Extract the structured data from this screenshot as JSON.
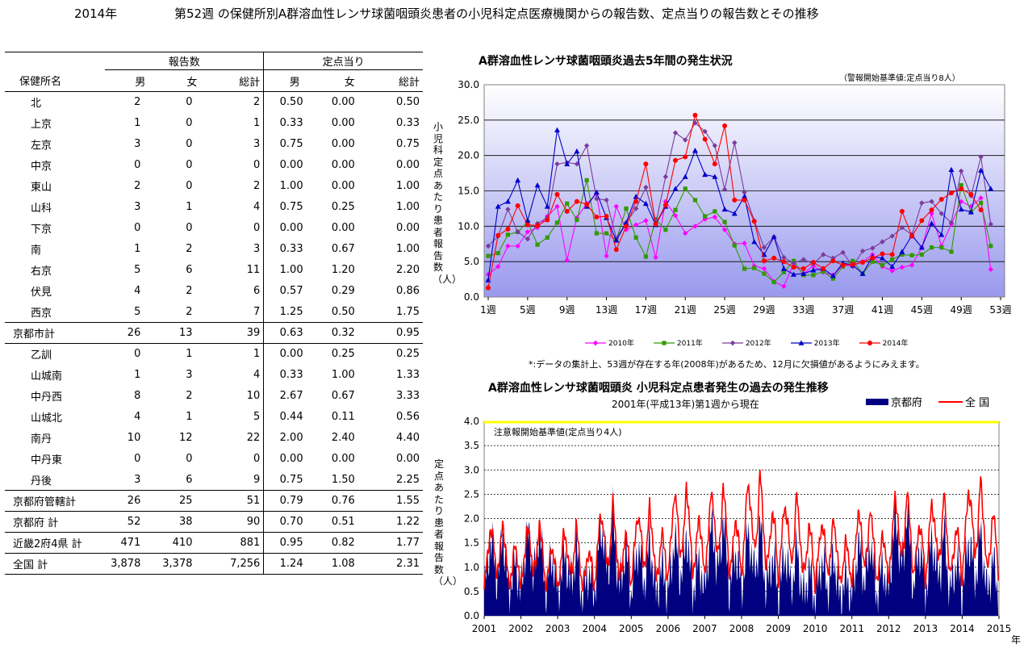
{
  "title": {
    "year": "2014年",
    "text": "第52週 の保健所別A群溶血性レンサ球菌咽頭炎患者の小児科定点医療機関からの報告数、定点当りの報告数とその推移"
  },
  "table": {
    "group_headers": [
      "報告数",
      "定点当り"
    ],
    "col_headers": [
      "保健所名",
      "男",
      "女",
      "総計",
      "男",
      "女",
      "総計"
    ],
    "rows": [
      {
        "name": "北",
        "m": "2",
        "f": "0",
        "t": "2",
        "pm": "0.50",
        "pf": "0.00",
        "pt": "0.50"
      },
      {
        "name": "上京",
        "m": "1",
        "f": "0",
        "t": "1",
        "pm": "0.33",
        "pf": "0.00",
        "pt": "0.33"
      },
      {
        "name": "左京",
        "m": "3",
        "f": "0",
        "t": "3",
        "pm": "0.75",
        "pf": "0.00",
        "pt": "0.75"
      },
      {
        "name": "中京",
        "m": "0",
        "f": "0",
        "t": "0",
        "pm": "0.00",
        "pf": "0.00",
        "pt": "0.00"
      },
      {
        "name": "東山",
        "m": "2",
        "f": "0",
        "t": "2",
        "pm": "1.00",
        "pf": "0.00",
        "pt": "1.00"
      },
      {
        "name": "山科",
        "m": "3",
        "f": "1",
        "t": "4",
        "pm": "0.75",
        "pf": "0.25",
        "pt": "1.00"
      },
      {
        "name": "下京",
        "m": "0",
        "f": "0",
        "t": "0",
        "pm": "0.00",
        "pf": "0.00",
        "pt": "0.00"
      },
      {
        "name": "南",
        "m": "1",
        "f": "2",
        "t": "3",
        "pm": "0.33",
        "pf": "0.67",
        "pt": "1.00"
      },
      {
        "name": "右京",
        "m": "5",
        "f": "6",
        "t": "11",
        "pm": "1.00",
        "pf": "1.20",
        "pt": "2.20"
      },
      {
        "name": "伏見",
        "m": "4",
        "f": "2",
        "t": "6",
        "pm": "0.57",
        "pf": "0.29",
        "pt": "0.86"
      },
      {
        "name": "西京",
        "m": "5",
        "f": "2",
        "t": "7",
        "pm": "1.25",
        "pf": "0.50",
        "pt": "1.75"
      },
      {
        "name": "京都市計",
        "m": "26",
        "f": "13",
        "t": "39",
        "pm": "0.63",
        "pf": "0.32",
        "pt": "0.95",
        "group": true
      },
      {
        "name": "乙訓",
        "m": "0",
        "f": "1",
        "t": "1",
        "pm": "0.00",
        "pf": "0.25",
        "pt": "0.25"
      },
      {
        "name": "山城南",
        "m": "1",
        "f": "3",
        "t": "4",
        "pm": "0.33",
        "pf": "1.00",
        "pt": "1.33"
      },
      {
        "name": "中丹西",
        "m": "8",
        "f": "2",
        "t": "10",
        "pm": "2.67",
        "pf": "0.67",
        "pt": "3.33"
      },
      {
        "name": "山城北",
        "m": "4",
        "f": "1",
        "t": "5",
        "pm": "0.44",
        "pf": "0.11",
        "pt": "0.56"
      },
      {
        "name": "南丹",
        "m": "10",
        "f": "12",
        "t": "22",
        "pm": "2.00",
        "pf": "2.40",
        "pt": "4.40"
      },
      {
        "name": "中丹東",
        "m": "0",
        "f": "0",
        "t": "0",
        "pm": "0.00",
        "pf": "0.00",
        "pt": "0.00"
      },
      {
        "name": "丹後",
        "m": "3",
        "f": "6",
        "t": "9",
        "pm": "0.75",
        "pf": "1.50",
        "pt": "2.25"
      },
      {
        "name": "京都府管轄計",
        "m": "26",
        "f": "25",
        "t": "51",
        "pm": "0.79",
        "pf": "0.76",
        "pt": "1.55",
        "group": true
      },
      {
        "name": "京都府 計",
        "m": "52",
        "f": "38",
        "t": "90",
        "pm": "0.70",
        "pf": "0.51",
        "pt": "1.22",
        "group": true
      },
      {
        "name": "近畿2府4県 計",
        "m": "471",
        "f": "410",
        "t": "881",
        "pm": "0.95",
        "pf": "0.82",
        "pt": "1.77",
        "group": true
      },
      {
        "name": "全国 計",
        "m": "3,878",
        "f": "3,378",
        "t": "7,256",
        "pm": "1.24",
        "pf": "1.08",
        "pt": "2.31",
        "group": true
      }
    ]
  },
  "chart_data": [
    {
      "type": "line",
      "title": "A群溶血性レンサ球菌咽頭炎過去5年間の発生状況",
      "note": "（警報開始基準値:定点当り8人）",
      "ylabel": "小児科定点あたり患者報告数（人）",
      "footnote": "*:データの集計上、53週が存在する年(2008年)があるため、12月に欠損値があるようにみえます。",
      "ylim": [
        0,
        30
      ],
      "yticks": [
        "0.0",
        "5.0",
        "10.0",
        "15.0",
        "20.0",
        "25.0",
        "30.0"
      ],
      "xticks": [
        "1週",
        "5週",
        "9週",
        "13週",
        "17週",
        "21週",
        "25週",
        "29週",
        "33週",
        "37週",
        "41週",
        "45週",
        "49週",
        "53週"
      ],
      "x_range": [
        1,
        53
      ],
      "series": [
        {
          "name": "2010年",
          "color": "#ff00ff",
          "marker": "diamond",
          "values": [
            3.2,
            4.3,
            7.2,
            7.2,
            9.2,
            9.8,
            11.4,
            12.8,
            5.2,
            11.2,
            13.2,
            14.6,
            5.8,
            12.8,
            9.5,
            10.2,
            10.8,
            5.6,
            13.5,
            11.5,
            9.0,
            10.0,
            11.0,
            11.3,
            9.5,
            7.5,
            7.6,
            4.4,
            4.0,
            2.2,
            1.5,
            4.7,
            3.3,
            4.4,
            3.5,
            3.1,
            4.5,
            4.4,
            5.0,
            6.0,
            4.3,
            3.7,
            4.2,
            4.5,
            7.0,
            11.8,
            7.2,
            10.3,
            13.5,
            12.8,
            14.0,
            3.9
          ]
        },
        {
          "name": "2011年",
          "color": "#339900",
          "marker": "square",
          "values": [
            5.8,
            6.2,
            8.8,
            9.2,
            10.6,
            7.4,
            8.4,
            10.5,
            13.2,
            10.9,
            16.5,
            9.0,
            9.0,
            8.1,
            12.5,
            8.4,
            5.7,
            11.0,
            9.5,
            12.3,
            15.3,
            13.7,
            11.4,
            12.1,
            10.6,
            7.3,
            4.0,
            4.1,
            3.3,
            2.1,
            3.5,
            5.1,
            3.1,
            3.1,
            3.6,
            2.6,
            4.3,
            5.1,
            3.3,
            5.0,
            4.5,
            5.3,
            6.0,
            5.9,
            6.0,
            7.0,
            7.0,
            6.4,
            15.8,
            12.0,
            13.3,
            7.2
          ]
        },
        {
          "name": "2012年",
          "color": "#7a3c9a",
          "marker": "diamond",
          "values": [
            7.2,
            8.6,
            12.4,
            9.2,
            8.2,
            10.4,
            11.2,
            18.8,
            19.0,
            18.8,
            21.4,
            13.9,
            13.7,
            8.3,
            10.5,
            12.5,
            15.5,
            10.3,
            17.0,
            23.2,
            22.2,
            24.6,
            23.4,
            21.4,
            15.2,
            21.8,
            14.8,
            10.8,
            7.0,
            8.5,
            5.6,
            4.8,
            5.3,
            4.7,
            6.0,
            5.5,
            6.3,
            4.3,
            6.5,
            6.9,
            7.8,
            8.6,
            9.8,
            8.8,
            13.3,
            13.5,
            11.8,
            10.5,
            17.8,
            14.3,
            19.8,
            10.3
          ]
        },
        {
          "name": "2013年",
          "color": "#0000cc",
          "marker": "triangle",
          "values": [
            2.4,
            12.8,
            13.5,
            16.5,
            10.8,
            15.8,
            12.8,
            23.6,
            18.8,
            20.6,
            12.8,
            14.8,
            11.2,
            8.0,
            10.5,
            14.2,
            13.2,
            10.2,
            12.8,
            15.3,
            17.0,
            20.7,
            17.3,
            17.0,
            12.4,
            11.8,
            14.2,
            7.8,
            6.0,
            8.5,
            4.0,
            3.2,
            3.3,
            3.8,
            4.0,
            3.0,
            4.8,
            4.5,
            3.3,
            5.7,
            5.5,
            4.3,
            6.4,
            8.7,
            7.0,
            10.4,
            8.8,
            18.0,
            12.4,
            12.0,
            17.9,
            15.3
          ]
        },
        {
          "name": "2014年",
          "color": "#ff0000",
          "marker": "circle",
          "values": [
            1.3,
            8.7,
            9.6,
            12.9,
            10.2,
            10.1,
            10.9,
            14.5,
            12.1,
            13.5,
            13.1,
            11.3,
            11.4,
            6.7,
            10.0,
            13.5,
            18.8,
            10.3,
            13.0,
            19.3,
            19.8,
            25.7,
            22.3,
            18.8,
            24.2,
            13.7,
            13.7,
            10.7,
            5.1,
            5.5,
            5.0,
            4.2,
            4.0,
            4.9,
            4.0,
            5.1,
            4.5,
            4.6,
            4.9,
            5.5,
            6.1,
            6.0,
            12.1,
            8.6,
            10.8,
            12.3,
            13.8,
            14.7,
            15.3,
            14.5,
            12.3
          ]
        }
      ]
    },
    {
      "type": "area",
      "title": "A群溶血性レンサ球菌咽頭炎 小児科定点患者発生の過去の発生推移",
      "subtitle": "2001年(平成13年)第1週から現在",
      "ylabel": "定点あたり患者報告数（人）",
      "annotation": "注意報開始基準値(定点当り4人)",
      "xunit": "年",
      "ylim": [
        0,
        4
      ],
      "yticks": [
        "0.0",
        "0.5",
        "1.0",
        "1.5",
        "2.0",
        "2.5",
        "3.0",
        "3.5",
        "4.0"
      ],
      "xticks": [
        "2001",
        "2002",
        "2003",
        "2004",
        "2005",
        "2006",
        "2007",
        "2008",
        "2009",
        "2010",
        "2011",
        "2012",
        "2013",
        "2014",
        "2015"
      ],
      "series": [
        {
          "name": "京都府",
          "color": "#000080",
          "type": "area",
          "yearly_profile": [
            0.4,
            0.9,
            1.4,
            1.2,
            0.7,
            0.9,
            1.6,
            1.0,
            0.4,
            0.7,
            1.0,
            0.8,
            0.3
          ],
          "yearly_scale": [
            1.1,
            1.2,
            0.9,
            1.3,
            1.0,
            1.1,
            1.3,
            1.2,
            0.9,
            0.8,
            1.0,
            1.4,
            1.1,
            1.1
          ]
        },
        {
          "name": "全 国",
          "color": "#ff0000",
          "type": "line",
          "yearly_profile": [
            0.6,
            1.3,
            2.0,
            1.7,
            1.0,
            1.2,
            2.2,
            1.5,
            0.7,
            1.0,
            1.6,
            1.3,
            0.5
          ],
          "yearly_scale": [
            0.9,
            0.9,
            0.85,
            1.05,
            1.05,
            1.25,
            1.25,
            1.35,
            1.15,
            0.95,
            1.05,
            1.2,
            1.15,
            1.3
          ]
        }
      ]
    }
  ],
  "colors": {
    "plot_bg_top": "#ffffff",
    "plot_bg_bottom": "#9999ee",
    "warning_line": "#ffff00"
  }
}
